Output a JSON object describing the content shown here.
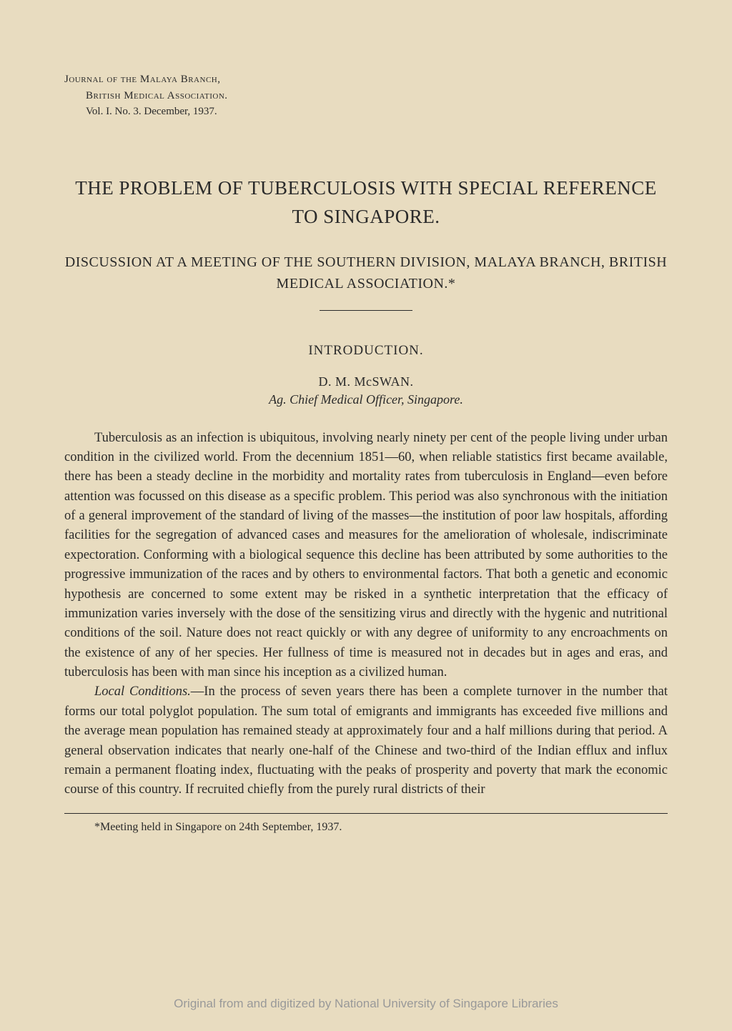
{
  "header": {
    "journal_line1": "Journal of the Malaya Branch,",
    "journal_line2": "British Medical Association.",
    "journal_line3": "Vol. I.  No. 3.  December, 1937."
  },
  "title": {
    "main": "THE PROBLEM OF TUBERCULOSIS WITH SPECIAL REFERENCE TO SINGAPORE.",
    "subtitle": "DISCUSSION AT A MEETING OF THE SOUTHERN DIVISION, MALAYA BRANCH, BRITISH MEDICAL ASSOCIATION.*"
  },
  "section": {
    "heading": "INTRODUCTION.",
    "author": "D. M. McSWAN.",
    "author_title": "Ag. Chief Medical Officer, Singapore."
  },
  "paragraphs": {
    "p1": "Tuberculosis as an infection is ubiquitous, involving nearly ninety per cent of the people living under urban condition in the civilized world. From the decennium 1851—60, when reliable statistics first became available, there has been a steady decline in the morbidity and mortality rates from tuberculosis in England—even before attention was focussed on this disease as a specific problem. This period was also synchronous with the initiation of a general improvement of the standard of living of the masses—the institution of poor law hospitals, affording facilities for the segregation of advanced cases and measures for the amelioration of wholesale, indiscriminate expectoration. Conforming with a biological sequence this decline has been attributed by some authorities to the progressive immunization of the races and by others to environmental factors. That both a genetic and economic hypothesis are concerned to some extent may be risked in a synthetic interpretation that the efficacy of immunization varies inversely with the dose of the sensitizing virus and directly with the hygenic and nutritional conditions of the soil. Nature does not react quickly or with any degree of uniformity to any encroachments on the existence of any of her species. Her fullness of time is measured not in decades but in ages and eras, and tuberculosis has been with man since his inception as a civilized human.",
    "p2_label": "Local Conditions.",
    "p2": "—In the process of seven years there has been a complete turnover in the number that forms our total polyglot population. The sum total of emigrants and immigrants has exceeded five millions and the average mean population has remained steady at approximately four and a half millions during that period. A general observation indicates that nearly one-half of the Chinese and two-third of the Indian efflux and influx remain a permanent floating index, fluctuating with the peaks of prosperity and poverty that mark the economic course of this country. If recruited chiefly from the purely rural districts of their"
  },
  "footnote": {
    "text": "*Meeting held in Singapore on 24th September, 1937."
  },
  "watermark": {
    "text": "Original from and digitized by National University of Singapore Libraries"
  },
  "colors": {
    "background": "#e8dcc0",
    "text": "#2a2a2a",
    "watermark": "#999999"
  },
  "typography": {
    "body_font": "Georgia, Times New Roman, serif",
    "body_size": 18.5,
    "title_size": 27,
    "subtitle_size": 20,
    "section_size": 19,
    "author_size": 18,
    "footnote_size": 16,
    "line_height": 1.48
  }
}
